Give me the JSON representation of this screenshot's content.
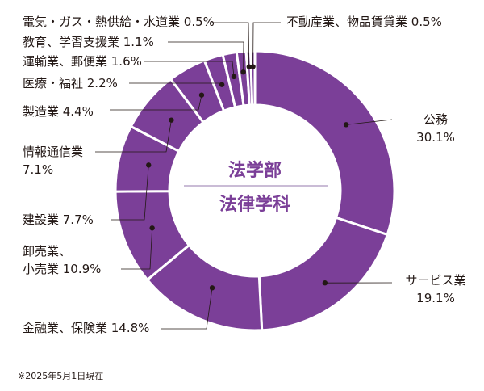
{
  "center": {
    "line1": "法学部",
    "line2": "法律学科"
  },
  "footnote": "※2025年5月1日現在",
  "colors": {
    "slice": "#7b3f98",
    "center_text": "#7b3f98",
    "divider": "#b9a5c8",
    "leader": "#231815",
    "text": "#231815",
    "background": "#ffffff"
  },
  "chart_data": {
    "type": "pie",
    "donut": true,
    "title": "",
    "categories": [
      "公務",
      "サービス業",
      "金融業、保険業",
      "卸売業、小売業",
      "建設業",
      "情報通信業",
      "製造業",
      "医療・福祉",
      "運輸業、郵便業",
      "教育、学習支援業",
      "電気・ガス・熱供給・水道業",
      "不動産業、物品賃貸業"
    ],
    "values": [
      30.1,
      19.1,
      14.8,
      10.9,
      7.7,
      7.1,
      4.4,
      2.2,
      1.6,
      1.1,
      0.5,
      0.5
    ],
    "label_lines": [
      [
        "公務",
        "30.1%"
      ],
      [
        "サービス業",
        "19.1%"
      ],
      [
        "金融業、保険業 14.8%"
      ],
      [
        "卸売業、",
        "小売業 10.9%"
      ],
      [
        "建設業 7.7%"
      ],
      [
        "情報通信業",
        "7.1%"
      ],
      [
        "製造業 4.4%"
      ],
      [
        "医療・福祉 2.2%"
      ],
      [
        "運輸業、郵便業 1.6%"
      ],
      [
        "教育、学習支援業 1.1%"
      ],
      [
        "電気・ガス・熱供給・水道業 0.5%"
      ],
      [
        "不動産業、物品賃貸業 0.5%"
      ]
    ],
    "unit": "%"
  }
}
